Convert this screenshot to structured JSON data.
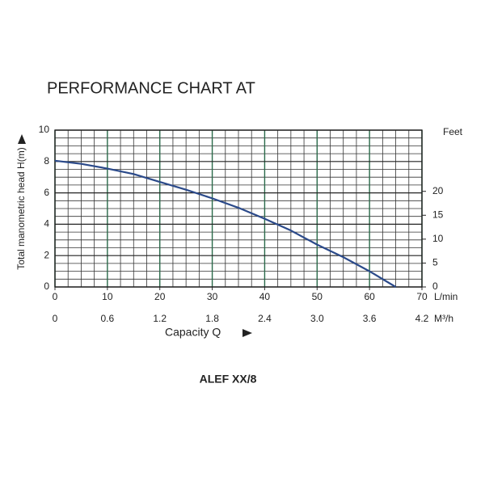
{
  "chart_data": {
    "type": "line",
    "title": "PERFORMANCE CHART AT",
    "subtitle": "ALEF XX/8",
    "y_label": "Total manometric head H(m)",
    "x_label": "Capacity Q",
    "x_unit": "L/min",
    "x2_unit": "M³/h",
    "y2_unit": "Feet",
    "x": [
      0,
      5,
      10,
      15,
      20,
      25,
      30,
      35,
      40,
      45,
      50,
      55,
      60,
      65
    ],
    "series": [
      {
        "color": "#2b4a8a",
        "values": [
          8.05,
          7.85,
          7.55,
          7.2,
          6.7,
          6.2,
          5.65,
          5.05,
          4.35,
          3.6,
          2.7,
          1.9,
          1.0,
          0
        ]
      }
    ],
    "xlim": [
      0,
      70
    ],
    "xticks": [
      0,
      10,
      20,
      30,
      40,
      50,
      60,
      70
    ],
    "x2lim": [
      0,
      4.2
    ],
    "x2ticks": [
      0,
      0.6,
      1.2,
      1.8,
      2.4,
      {
        "value": 3,
        "label": "3.0"
      },
      3.6,
      4.2
    ],
    "ylim": [
      0,
      10
    ],
    "yticks": [
      0,
      2,
      4,
      6,
      8,
      10
    ],
    "y2lim": [
      0,
      32.8
    ],
    "y2ticks": [
      0,
      5,
      10,
      15,
      20
    ],
    "grid": true
  }
}
